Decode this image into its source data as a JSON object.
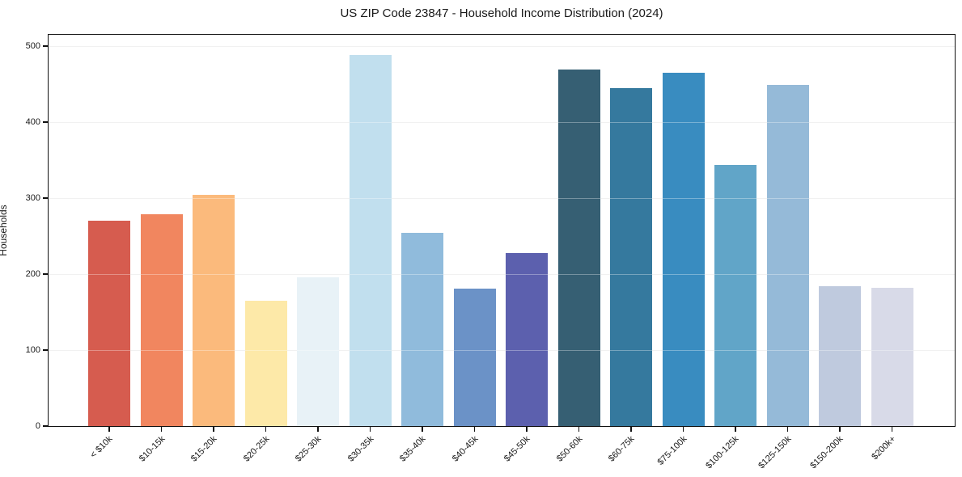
{
  "title": "US ZIP Code 23847 - Household Income Distribution (2024)",
  "chart_data": {
    "type": "bar",
    "title": "US ZIP Code 23847 - Household Income Distribution (2024)",
    "xlabel": "",
    "ylabel": "Households",
    "categories": [
      "< $10k",
      "$10-15k",
      "$15-20k",
      "$20-25k",
      "$25-30k",
      "$30-35k",
      "$35-40k",
      "$40-45k",
      "$45-50k",
      "$50-60k",
      "$60-75k",
      "$75-100k",
      "$100-125k",
      "$125-150k",
      "$150-200k",
      "$200k+"
    ],
    "values": [
      270,
      279,
      304,
      165,
      196,
      488,
      254,
      181,
      228,
      469,
      445,
      465,
      344,
      449,
      184,
      182
    ],
    "bar_colors": [
      "#d65c4f",
      "#f1865f",
      "#fbba7c",
      "#fde9a8",
      "#e8f2f7",
      "#c1dfee",
      "#90bbdc",
      "#6b92c7",
      "#5c60ae",
      "#365f73",
      "#35799e",
      "#398cc0",
      "#61a5c8",
      "#95bad8",
      "#bfcade",
      "#d8dae8"
    ],
    "ylim": [
      0,
      515
    ],
    "yticks": [
      0,
      100,
      200,
      300,
      400,
      500
    ],
    "grid": "horizontal",
    "gridline_values": [
      100,
      200,
      300,
      400,
      500
    ],
    "legend": "none",
    "tick_label_rotation_deg": 45
  }
}
